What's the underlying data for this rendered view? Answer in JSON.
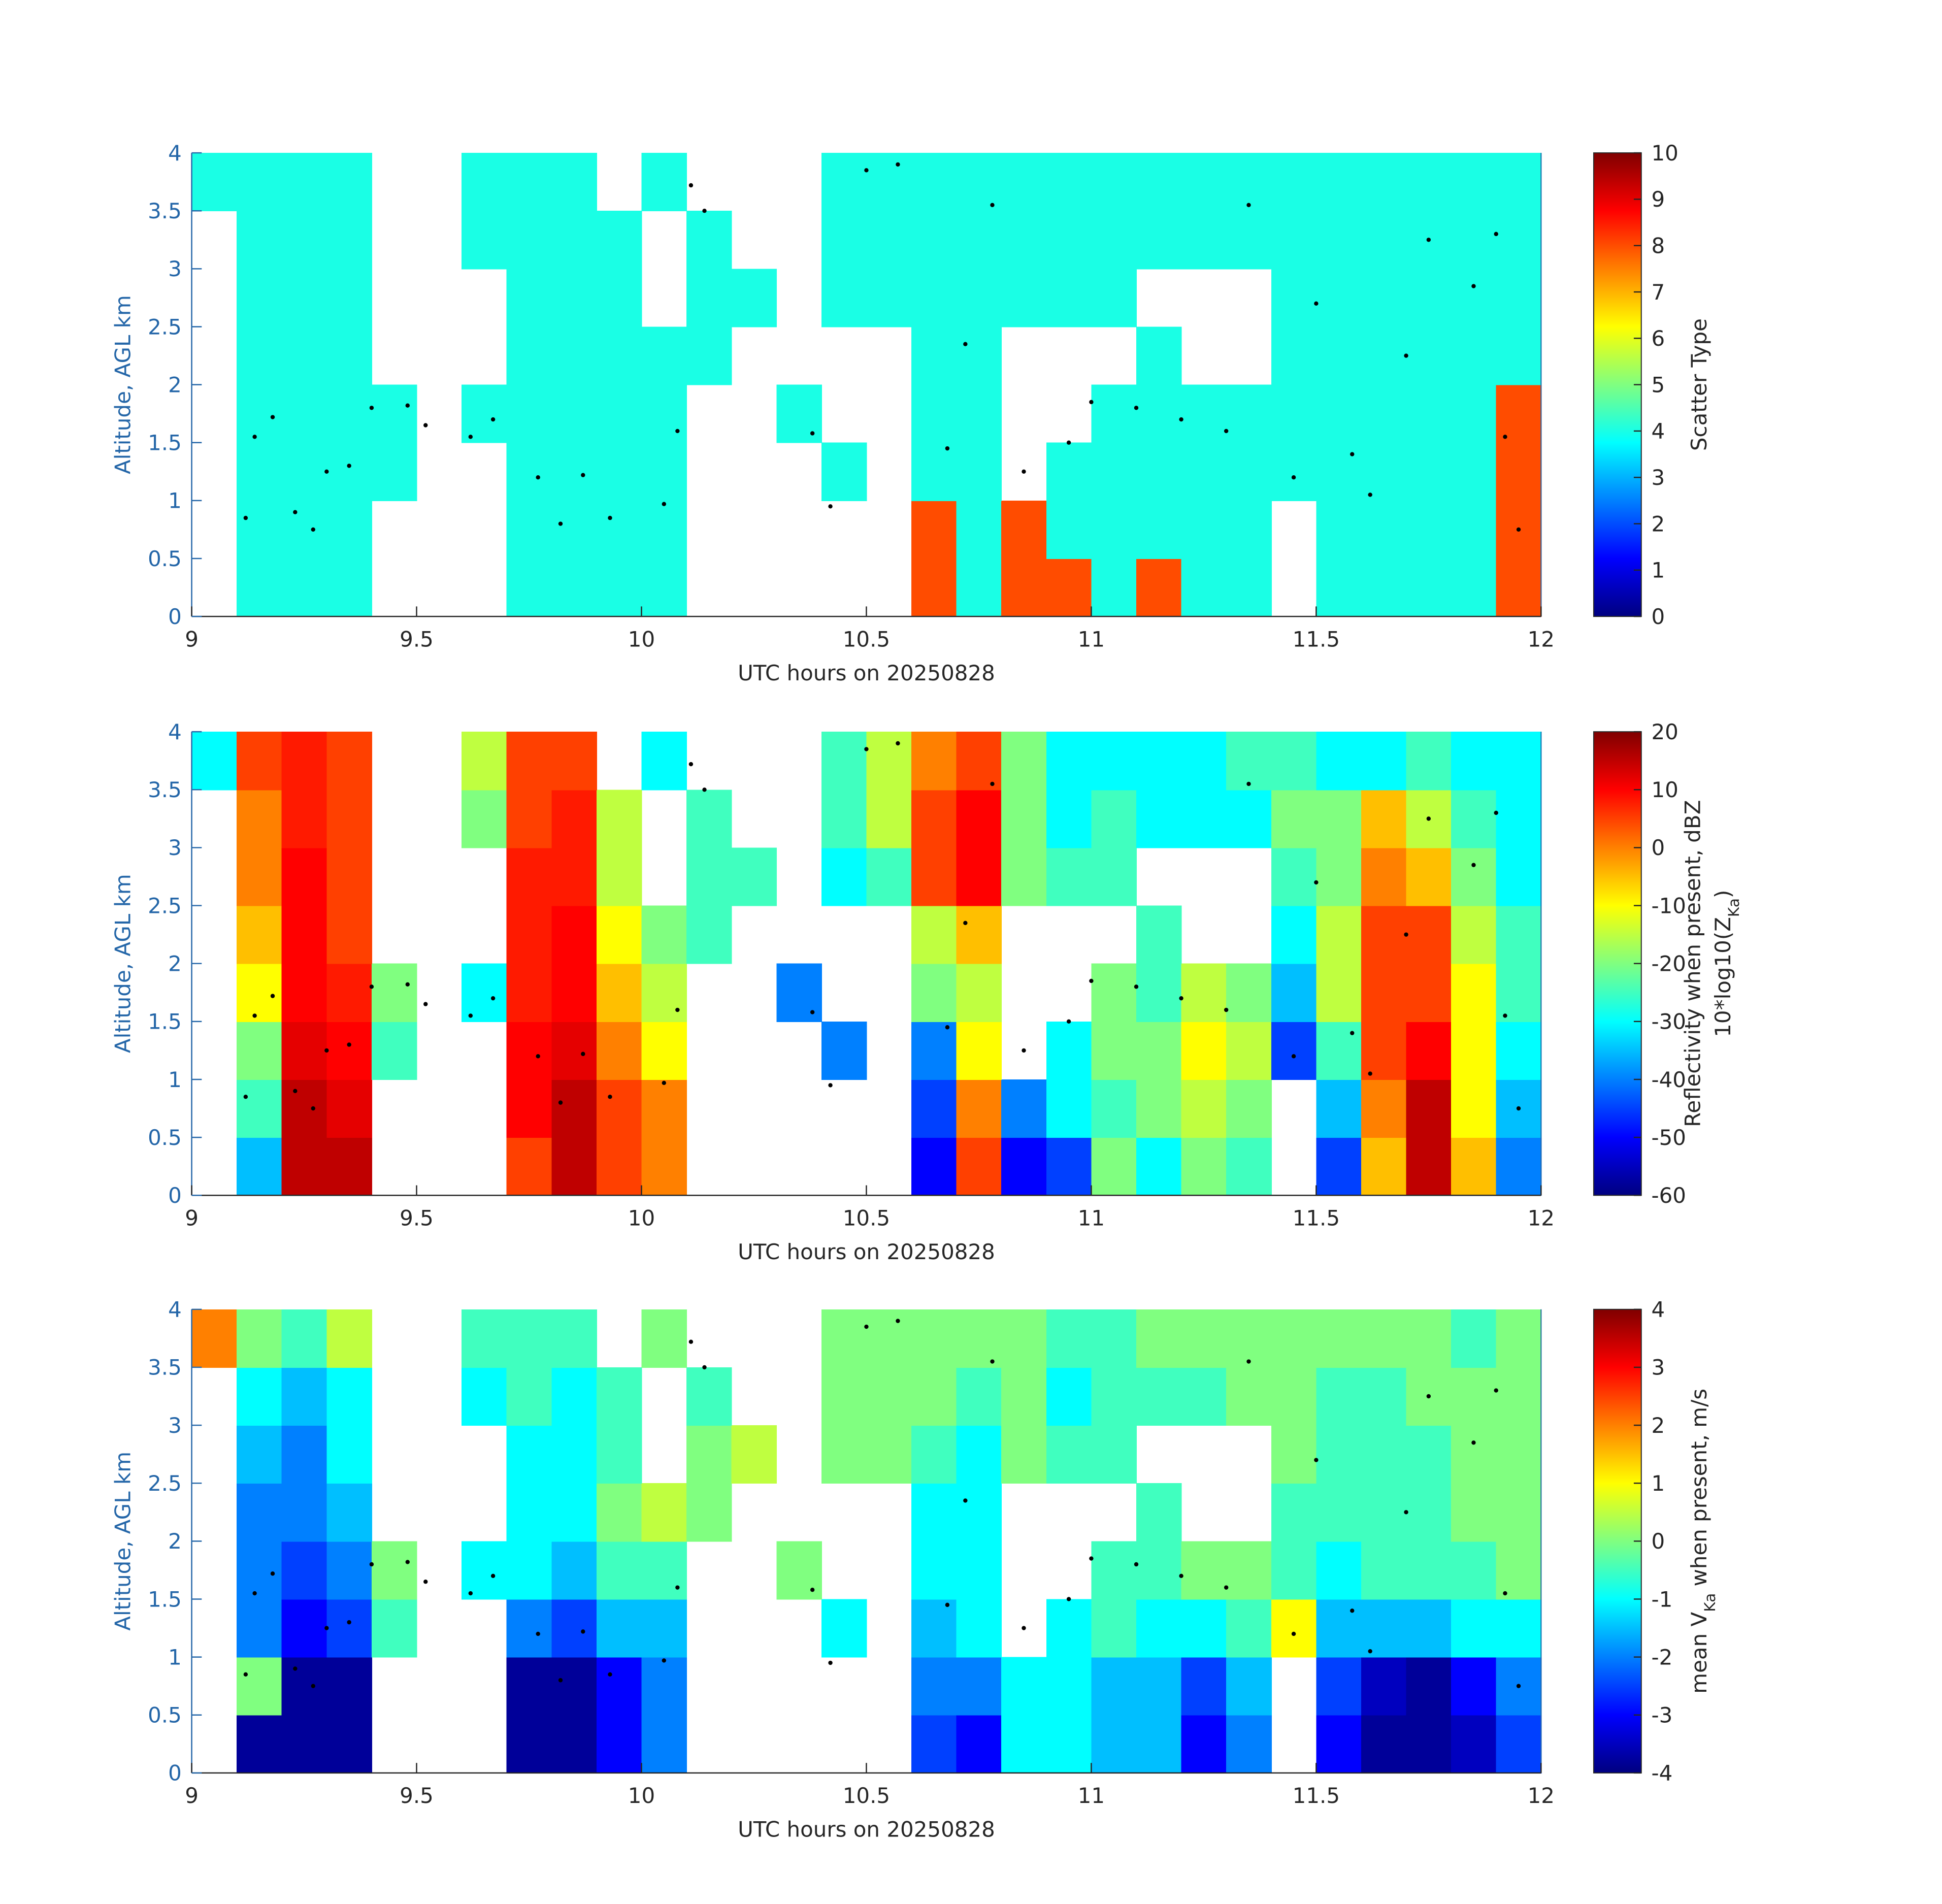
{
  "chart_data": [
    {
      "type": "heatmap",
      "colormap": "jet",
      "xlabel": "UTC hours on 20250828",
      "ylabel": "Altitude, AGL km",
      "xlim": [
        9,
        12
      ],
      "xticks": [
        9,
        9.5,
        10,
        10.5,
        11,
        11.5,
        12
      ],
      "ylim": [
        0,
        4
      ],
      "yticks": [
        0,
        0.5,
        1,
        1.5,
        2,
        2.5,
        3,
        3.5,
        4
      ],
      "clim": [
        0,
        10
      ],
      "cticks": [
        0,
        1,
        2,
        3,
        4,
        5,
        6,
        7,
        8,
        9,
        10
      ],
      "colorbar_label": [
        [
          "Scatter Type"
        ]
      ],
      "x": [
        9.05,
        9.15,
        9.25,
        9.35,
        9.45,
        9.55,
        9.65,
        9.75,
        9.85,
        9.95,
        10.05,
        10.15,
        10.25,
        10.35,
        10.45,
        10.55,
        10.65,
        10.75,
        10.85,
        10.95,
        11.05,
        11.15,
        11.25,
        11.35,
        11.45,
        11.55,
        11.65,
        11.75,
        11.85,
        11.95
      ],
      "y": [
        0.25,
        0.75,
        1.25,
        1.75,
        2.25,
        2.75,
        3.25,
        3.75
      ],
      "values": [
        [
          null,
          4,
          4,
          4,
          null,
          null,
          null,
          4,
          4,
          4,
          4,
          null,
          null,
          null,
          null,
          null,
          8,
          4,
          8,
          8,
          4,
          8,
          4,
          4,
          null,
          4,
          4,
          4,
          4,
          8
        ],
        [
          null,
          4,
          4,
          4,
          null,
          null,
          null,
          4,
          4,
          4,
          4,
          null,
          null,
          null,
          null,
          null,
          8,
          4,
          8,
          4,
          4,
          4,
          4,
          4,
          null,
          4,
          4,
          4,
          4,
          8
        ],
        [
          null,
          4,
          4,
          4,
          4,
          null,
          null,
          4,
          4,
          4,
          4,
          null,
          null,
          null,
          4,
          null,
          4,
          4,
          null,
          4,
          4,
          4,
          4,
          4,
          4,
          4,
          4,
          4,
          4,
          8
        ],
        [
          null,
          4,
          4,
          4,
          4,
          null,
          4,
          4,
          4,
          4,
          4,
          null,
          null,
          4,
          null,
          null,
          4,
          4,
          null,
          null,
          4,
          4,
          4,
          4,
          4,
          4,
          4,
          4,
          4,
          8
        ],
        [
          null,
          4,
          4,
          4,
          null,
          null,
          null,
          4,
          4,
          4,
          4,
          4,
          null,
          null,
          null,
          null,
          4,
          4,
          null,
          null,
          null,
          4,
          null,
          null,
          4,
          4,
          4,
          4,
          4,
          4
        ],
        [
          null,
          4,
          4,
          4,
          null,
          null,
          null,
          4,
          4,
          4,
          null,
          4,
          4,
          null,
          4,
          4,
          4,
          4,
          4,
          4,
          4,
          null,
          null,
          null,
          4,
          4,
          4,
          4,
          4,
          4
        ],
        [
          null,
          4,
          4,
          4,
          null,
          null,
          4,
          4,
          4,
          4,
          null,
          4,
          null,
          null,
          4,
          4,
          4,
          4,
          4,
          4,
          4,
          4,
          4,
          4,
          4,
          4,
          4,
          4,
          4,
          4
        ],
        [
          4,
          4,
          4,
          4,
          null,
          null,
          4,
          4,
          4,
          null,
          4,
          null,
          null,
          null,
          4,
          4,
          4,
          4,
          4,
          4,
          4,
          4,
          4,
          4,
          4,
          4,
          4,
          4,
          4,
          4
        ]
      ],
      "points": {
        "color": "#000000",
        "x": [
          9.12,
          9.14,
          9.18,
          9.23,
          9.27,
          9.3,
          9.35,
          9.4,
          9.48,
          9.52,
          9.62,
          9.67,
          9.77,
          9.82,
          9.87,
          9.93,
          10.05,
          10.08,
          10.11,
          10.14,
          10.38,
          10.42,
          10.5,
          10.57,
          10.68,
          10.72,
          10.78,
          10.85,
          10.95,
          11.0,
          11.1,
          11.2,
          11.3,
          11.35,
          11.45,
          11.5,
          11.58,
          11.62,
          11.7,
          11.75,
          11.85,
          11.9,
          11.92,
          11.95
        ],
        "y": [
          0.85,
          1.55,
          1.72,
          0.9,
          0.75,
          1.25,
          1.3,
          1.8,
          1.82,
          1.65,
          1.55,
          1.7,
          1.2,
          0.8,
          1.22,
          0.85,
          0.97,
          1.6,
          3.72,
          3.5,
          1.58,
          0.95,
          3.85,
          3.9,
          1.45,
          2.35,
          3.55,
          1.25,
          1.5,
          1.85,
          1.8,
          1.7,
          1.6,
          3.55,
          1.2,
          2.7,
          1.4,
          1.05,
          2.25,
          3.25,
          2.85,
          3.3,
          1.55,
          0.75
        ]
      }
    },
    {
      "type": "heatmap",
      "colormap": "jet",
      "xlabel": "UTC hours on 20250828",
      "ylabel": "Altitude, AGL km",
      "xlim": [
        9,
        12
      ],
      "xticks": [
        9,
        9.5,
        10,
        10.5,
        11,
        11.5,
        12
      ],
      "ylim": [
        0,
        4
      ],
      "yticks": [
        0,
        0.5,
        1,
        1.5,
        2,
        2.5,
        3,
        3.5,
        4
      ],
      "clim": [
        -60,
        20
      ],
      "cticks": [
        -60,
        -50,
        -40,
        -30,
        -20,
        -10,
        0,
        10,
        20
      ],
      "colorbar_label": [
        [
          "Reflectivity when present, dBZ"
        ],
        [
          "10*log10(Z",
          "Ka",
          ")"
        ]
      ],
      "x": [
        9.05,
        9.15,
        9.25,
        9.35,
        9.45,
        9.55,
        9.65,
        9.75,
        9.85,
        9.95,
        10.05,
        10.15,
        10.25,
        10.35,
        10.45,
        10.55,
        10.65,
        10.75,
        10.85,
        10.95,
        11.05,
        11.15,
        11.25,
        11.35,
        11.45,
        11.55,
        11.65,
        11.75,
        11.85,
        11.95
      ],
      "y": [
        0.25,
        0.75,
        1.25,
        1.75,
        2.25,
        2.75,
        3.25,
        3.75
      ],
      "values": [
        [
          null,
          -35,
          15,
          15,
          null,
          null,
          null,
          5,
          15,
          5,
          0,
          null,
          null,
          null,
          null,
          null,
          -50,
          5,
          -50,
          -45,
          -20,
          -30,
          -20,
          -25,
          null,
          -45,
          -5,
          15,
          -5,
          -40
        ],
        [
          null,
          -25,
          15,
          12,
          null,
          null,
          null,
          10,
          15,
          5,
          0,
          null,
          null,
          null,
          null,
          null,
          -45,
          0,
          -40,
          -30,
          -25,
          -20,
          -15,
          -20,
          null,
          -35,
          0,
          15,
          -10,
          -35
        ],
        [
          null,
          -20,
          12,
          10,
          -25,
          null,
          null,
          10,
          12,
          0,
          -10,
          null,
          null,
          null,
          -40,
          null,
          -40,
          -10,
          null,
          -30,
          -20,
          -20,
          -10,
          -15,
          -45,
          -25,
          5,
          10,
          -10,
          -30
        ],
        [
          null,
          -10,
          10,
          8,
          -20,
          null,
          -30,
          8,
          10,
          -5,
          -15,
          null,
          null,
          -40,
          null,
          null,
          -20,
          -15,
          null,
          null,
          -20,
          -25,
          -15,
          -20,
          -35,
          -15,
          5,
          5,
          -10,
          -25
        ],
        [
          null,
          -5,
          10,
          5,
          null,
          null,
          null,
          8,
          10,
          -10,
          -20,
          -25,
          null,
          null,
          null,
          null,
          -15,
          -5,
          null,
          null,
          null,
          -25,
          null,
          null,
          -30,
          -15,
          5,
          5,
          -15,
          -25
        ],
        [
          null,
          0,
          10,
          5,
          null,
          null,
          null,
          8,
          8,
          -15,
          null,
          -25,
          -25,
          null,
          -30,
          -25,
          5,
          10,
          -20,
          -25,
          -25,
          null,
          null,
          null,
          -25,
          -20,
          0,
          -5,
          -20,
          -30
        ],
        [
          null,
          0,
          8,
          5,
          null,
          null,
          -20,
          5,
          8,
          -15,
          null,
          -25,
          null,
          null,
          -25,
          -15,
          5,
          10,
          -20,
          -30,
          -25,
          -30,
          -30,
          -30,
          -20,
          -20,
          -5,
          -15,
          -25,
          -30
        ],
        [
          -30,
          5,
          8,
          5,
          null,
          null,
          -15,
          5,
          5,
          null,
          -30,
          null,
          null,
          null,
          -25,
          -15,
          0,
          5,
          -20,
          -30,
          -30,
          -30,
          -30,
          -25,
          -25,
          -30,
          -30,
          -25,
          -30,
          -30
        ]
      ],
      "points": {
        "color": "#000000",
        "x": [
          9.12,
          9.14,
          9.18,
          9.23,
          9.27,
          9.3,
          9.35,
          9.4,
          9.48,
          9.52,
          9.62,
          9.67,
          9.77,
          9.82,
          9.87,
          9.93,
          10.05,
          10.08,
          10.11,
          10.14,
          10.38,
          10.42,
          10.5,
          10.57,
          10.68,
          10.72,
          10.78,
          10.85,
          10.95,
          11.0,
          11.1,
          11.2,
          11.3,
          11.35,
          11.45,
          11.5,
          11.58,
          11.62,
          11.7,
          11.75,
          11.85,
          11.9,
          11.92,
          11.95
        ],
        "y": [
          0.85,
          1.55,
          1.72,
          0.9,
          0.75,
          1.25,
          1.3,
          1.8,
          1.82,
          1.65,
          1.55,
          1.7,
          1.2,
          0.8,
          1.22,
          0.85,
          0.97,
          1.6,
          3.72,
          3.5,
          1.58,
          0.95,
          3.85,
          3.9,
          1.45,
          2.35,
          3.55,
          1.25,
          1.5,
          1.85,
          1.8,
          1.7,
          1.6,
          3.55,
          1.2,
          2.7,
          1.4,
          1.05,
          2.25,
          3.25,
          2.85,
          3.3,
          1.55,
          0.75
        ]
      }
    },
    {
      "type": "heatmap",
      "colormap": "jet",
      "xlabel": "UTC hours on 20250828",
      "ylabel": "Altitude, AGL km",
      "xlim": [
        9,
        12
      ],
      "xticks": [
        9,
        9.5,
        10,
        10.5,
        11,
        11.5,
        12
      ],
      "ylim": [
        0,
        4
      ],
      "yticks": [
        0,
        0.5,
        1,
        1.5,
        2,
        2.5,
        3,
        3.5,
        4
      ],
      "clim": [
        -4,
        4
      ],
      "cticks": [
        -4,
        -3,
        -2,
        -1,
        0,
        1,
        2,
        3,
        4
      ],
      "colorbar_label": [
        [
          "mean V",
          "Ka",
          " when present, m/s"
        ]
      ],
      "x": [
        9.05,
        9.15,
        9.25,
        9.35,
        9.45,
        9.55,
        9.65,
        9.75,
        9.85,
        9.95,
        10.05,
        10.15,
        10.25,
        10.35,
        10.45,
        10.55,
        10.65,
        10.75,
        10.85,
        10.95,
        11.05,
        11.15,
        11.25,
        11.35,
        11.45,
        11.55,
        11.65,
        11.75,
        11.85,
        11.95
      ],
      "y": [
        0.25,
        0.75,
        1.25,
        1.75,
        2.25,
        2.75,
        3.25,
        3.75
      ],
      "values": [
        [
          null,
          -3.8,
          -3.8,
          -3.8,
          null,
          null,
          null,
          -3.8,
          -3.8,
          -3,
          -2,
          null,
          null,
          null,
          null,
          null,
          -2.5,
          -3,
          -1,
          -1,
          -1.5,
          -1.5,
          -3,
          -2,
          null,
          -3,
          -3.8,
          -3.8,
          -3.5,
          -2.5
        ],
        [
          null,
          0,
          -3.8,
          -3.8,
          null,
          null,
          null,
          -3.8,
          -3.8,
          -3,
          -2,
          null,
          null,
          null,
          null,
          null,
          -2,
          -2,
          -1,
          -1,
          -1.5,
          -1.5,
          -2.5,
          -1.5,
          null,
          -2.5,
          -3.5,
          -3.8,
          -3,
          -2
        ],
        [
          null,
          -2,
          -3,
          -2.5,
          -0.5,
          null,
          null,
          -2,
          -2.5,
          -1.5,
          -1.5,
          null,
          null,
          null,
          -1,
          null,
          -1.5,
          -1,
          null,
          -1,
          -0.5,
          -1,
          -1,
          -0.5,
          1,
          -1.5,
          -1.5,
          -1.5,
          -1,
          -1
        ],
        [
          null,
          -2,
          -2.5,
          -2,
          0,
          null,
          -1,
          -1,
          -1.5,
          -0.5,
          -0.5,
          null,
          null,
          0,
          null,
          null,
          -1,
          -1,
          null,
          null,
          -0.5,
          -0.5,
          0,
          0,
          -0.5,
          -1,
          -0.5,
          -0.5,
          -0.5,
          0
        ],
        [
          null,
          -2,
          -2,
          -1.5,
          null,
          null,
          null,
          -1,
          -1,
          0,
          0.5,
          0,
          null,
          null,
          null,
          null,
          -1,
          -1,
          null,
          null,
          null,
          -0.5,
          null,
          null,
          -0.5,
          -0.5,
          -0.5,
          -0.5,
          0,
          0
        ],
        [
          null,
          -1.5,
          -2,
          -1,
          null,
          null,
          null,
          -1,
          -1,
          -0.5,
          null,
          0,
          0.5,
          null,
          0,
          0,
          -0.5,
          -1,
          0,
          -0.5,
          -0.5,
          null,
          null,
          null,
          0,
          -0.5,
          -0.5,
          -0.5,
          0,
          0
        ],
        [
          null,
          -1,
          -1.5,
          -1,
          null,
          null,
          -1,
          -0.5,
          -1,
          -0.5,
          null,
          -0.5,
          null,
          null,
          0,
          0,
          0,
          -0.5,
          0,
          -1,
          -0.5,
          -0.5,
          -0.5,
          0,
          0,
          -0.5,
          -0.5,
          0,
          0,
          0
        ],
        [
          2,
          0,
          -0.5,
          0.5,
          null,
          null,
          -0.5,
          -0.5,
          -0.5,
          null,
          0,
          null,
          null,
          null,
          0,
          0,
          0,
          0,
          0,
          -0.5,
          -0.5,
          0,
          0,
          0,
          0,
          0,
          0,
          0,
          -0.5,
          0
        ]
      ],
      "points": {
        "color": "#000000",
        "x": [
          9.12,
          9.14,
          9.18,
          9.23,
          9.27,
          9.3,
          9.35,
          9.4,
          9.48,
          9.52,
          9.62,
          9.67,
          9.77,
          9.82,
          9.87,
          9.93,
          10.05,
          10.08,
          10.11,
          10.14,
          10.38,
          10.42,
          10.5,
          10.57,
          10.68,
          10.72,
          10.78,
          10.85,
          10.95,
          11.0,
          11.1,
          11.2,
          11.3,
          11.35,
          11.45,
          11.5,
          11.58,
          11.62,
          11.7,
          11.75,
          11.85,
          11.9,
          11.92,
          11.95
        ],
        "y": [
          0.85,
          1.55,
          1.72,
          0.9,
          0.75,
          1.25,
          1.3,
          1.8,
          1.82,
          1.65,
          1.55,
          1.7,
          1.2,
          0.8,
          1.22,
          0.85,
          0.97,
          1.6,
          3.72,
          3.5,
          1.58,
          0.95,
          3.85,
          3.9,
          1.45,
          2.35,
          3.55,
          1.25,
          1.5,
          1.85,
          1.8,
          1.7,
          1.6,
          3.55,
          1.2,
          2.7,
          1.4,
          1.05,
          2.25,
          3.25,
          2.85,
          3.3,
          1.55,
          0.75
        ]
      }
    }
  ]
}
